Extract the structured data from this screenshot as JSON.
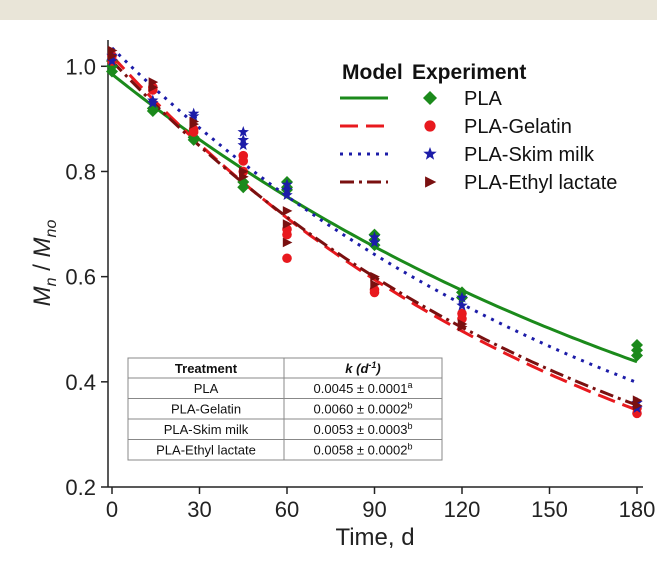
{
  "colors": {
    "top_bar": "#e9e5d8"
  },
  "chart_data": {
    "type": "line",
    "xlabel": "Time, d",
    "ylabel_main": "M",
    "ylabel_main_sub": "n",
    "ylabel_sep": " / ",
    "ylabel_den": "M",
    "ylabel_den_sub": "no",
    "xlim": [
      0,
      180
    ],
    "ylim": [
      0.2,
      1.05
    ],
    "xticks": [
      0,
      30,
      60,
      90,
      120,
      150,
      180
    ],
    "yticks": [
      0.2,
      0.4,
      0.6,
      0.8,
      1.0
    ],
    "legend": {
      "position": "top-right",
      "model_header": "Model",
      "experiment_header": "Experiment"
    },
    "series": [
      {
        "name": "PLA",
        "color": "#1b8a1b",
        "line_style": "solid",
        "marker": "diamond",
        "model": {
          "y0": 0.985,
          "k": 0.0045
        },
        "experiment": [
          {
            "x": 0,
            "y": 1.0
          },
          {
            "x": 0,
            "y": 1.01
          },
          {
            "x": 0,
            "y": 0.99
          },
          {
            "x": 14,
            "y": 0.915
          },
          {
            "x": 14,
            "y": 0.92
          },
          {
            "x": 28,
            "y": 0.86
          },
          {
            "x": 28,
            "y": 0.865
          },
          {
            "x": 45,
            "y": 0.77
          },
          {
            "x": 45,
            "y": 0.78
          },
          {
            "x": 60,
            "y": 0.78
          },
          {
            "x": 60,
            "y": 0.77
          },
          {
            "x": 60,
            "y": 0.765
          },
          {
            "x": 90,
            "y": 0.68
          },
          {
            "x": 90,
            "y": 0.67
          },
          {
            "x": 90,
            "y": 0.66
          },
          {
            "x": 120,
            "y": 0.57
          },
          {
            "x": 120,
            "y": 0.56
          },
          {
            "x": 180,
            "y": 0.47
          },
          {
            "x": 180,
            "y": 0.46
          },
          {
            "x": 180,
            "y": 0.45
          }
        ]
      },
      {
        "name": "PLA-Gelatin",
        "color": "#e8191e",
        "line_style": "dash",
        "marker": "circle",
        "model": {
          "y0": 1.02,
          "k": 0.006
        },
        "experiment": [
          {
            "x": 0,
            "y": 1.02
          },
          {
            "x": 0,
            "y": 1.01
          },
          {
            "x": 14,
            "y": 0.955
          },
          {
            "x": 14,
            "y": 0.96
          },
          {
            "x": 28,
            "y": 0.875
          },
          {
            "x": 28,
            "y": 0.88
          },
          {
            "x": 45,
            "y": 0.83
          },
          {
            "x": 45,
            "y": 0.82
          },
          {
            "x": 45,
            "y": 0.8
          },
          {
            "x": 60,
            "y": 0.69
          },
          {
            "x": 60,
            "y": 0.68
          },
          {
            "x": 60,
            "y": 0.635
          },
          {
            "x": 90,
            "y": 0.575
          },
          {
            "x": 90,
            "y": 0.57
          },
          {
            "x": 120,
            "y": 0.53
          },
          {
            "x": 120,
            "y": 0.52
          },
          {
            "x": 180,
            "y": 0.34
          },
          {
            "x": 180,
            "y": 0.35
          }
        ]
      },
      {
        "name": "PLA-Skim milk",
        "color": "#1c1ca8",
        "line_style": "dot",
        "marker": "star",
        "model": {
          "y0": 1.035,
          "k": 0.0053
        },
        "experiment": [
          {
            "x": 0,
            "y": 1.02
          },
          {
            "x": 0,
            "y": 1.01
          },
          {
            "x": 14,
            "y": 0.935
          },
          {
            "x": 14,
            "y": 0.93
          },
          {
            "x": 28,
            "y": 0.91
          },
          {
            "x": 28,
            "y": 0.905
          },
          {
            "x": 45,
            "y": 0.875
          },
          {
            "x": 45,
            "y": 0.86
          },
          {
            "x": 45,
            "y": 0.85
          },
          {
            "x": 60,
            "y": 0.775
          },
          {
            "x": 60,
            "y": 0.765
          },
          {
            "x": 60,
            "y": 0.755
          },
          {
            "x": 90,
            "y": 0.675
          },
          {
            "x": 90,
            "y": 0.665
          },
          {
            "x": 120,
            "y": 0.56
          },
          {
            "x": 120,
            "y": 0.545
          },
          {
            "x": 180,
            "y": 0.36
          },
          {
            "x": 180,
            "y": 0.35
          }
        ]
      },
      {
        "name": "PLA-Ethyl lactate",
        "color": "#7a1010",
        "line_style": "dashdot",
        "marker": "triangle-right",
        "model": {
          "y0": 1.01,
          "k": 0.0058
        },
        "experiment": [
          {
            "x": 0,
            "y": 1.03
          },
          {
            "x": 0,
            "y": 1.02
          },
          {
            "x": 14,
            "y": 0.97
          },
          {
            "x": 14,
            "y": 0.96
          },
          {
            "x": 28,
            "y": 0.895
          },
          {
            "x": 28,
            "y": 0.89
          },
          {
            "x": 45,
            "y": 0.8
          },
          {
            "x": 45,
            "y": 0.79
          },
          {
            "x": 60,
            "y": 0.725
          },
          {
            "x": 60,
            "y": 0.7
          },
          {
            "x": 60,
            "y": 0.665
          },
          {
            "x": 90,
            "y": 0.6
          },
          {
            "x": 90,
            "y": 0.585
          },
          {
            "x": 120,
            "y": 0.51
          },
          {
            "x": 120,
            "y": 0.505
          },
          {
            "x": 180,
            "y": 0.365
          },
          {
            "x": 180,
            "y": 0.355
          }
        ]
      }
    ],
    "table": {
      "headers": [
        "Treatment",
        "k",
        "(d",
        "-1",
        ")"
      ],
      "rows": [
        {
          "treatment": "PLA",
          "k": "0.0045 ± 0.0001",
          "sup": "a"
        },
        {
          "treatment": "PLA-Gelatin",
          "k": "0.0060 ± 0.0002",
          "sup": "b"
        },
        {
          "treatment": "PLA-Skim milk",
          "k": "0.0053 ± 0.0003",
          "sup": "b"
        },
        {
          "treatment": "PLA-Ethyl lactate",
          "k": "0.0058 ± 0.0002",
          "sup": "b"
        }
      ]
    }
  }
}
